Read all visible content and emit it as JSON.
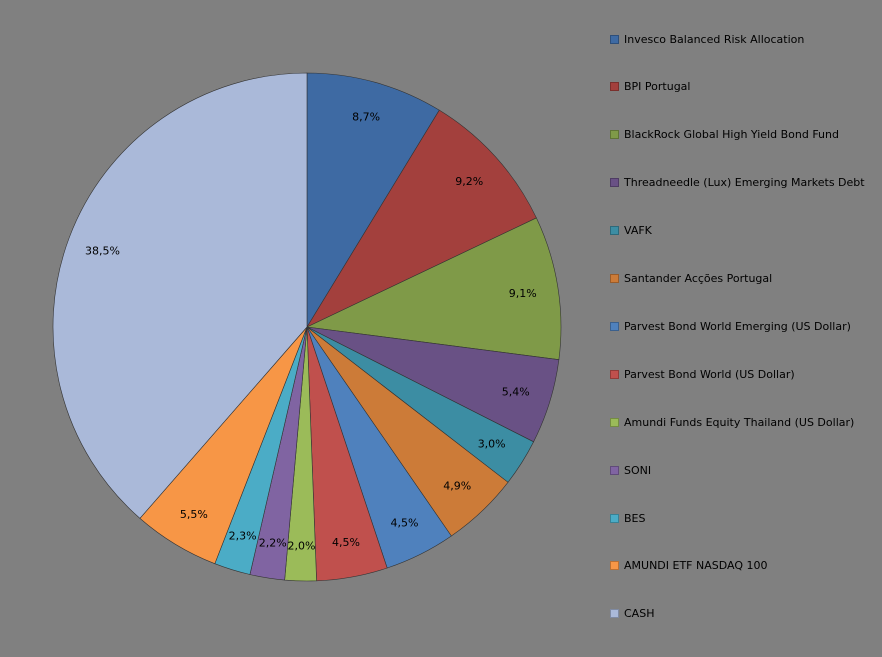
{
  "chart_data": {
    "type": "pie",
    "legend_position": "right",
    "slices": [
      {
        "name": "Invesco Balanced Risk Allocation",
        "value": 8.7,
        "label": "8,7%",
        "color": "#3E6AA3"
      },
      {
        "name": "BPI Portugal",
        "value": 9.2,
        "label": "9,2%",
        "color": "#A3403D"
      },
      {
        "name": "BlackRock Global High Yield Bond Fund",
        "value": 9.1,
        "label": "9,1%",
        "color": "#7F9A48"
      },
      {
        "name": "Threadneedle (Lux) Emerging Markets Debt",
        "value": 5.4,
        "label": "5,4%",
        "color": "#695185"
      },
      {
        "name": "VAFK",
        "value": 3.0,
        "label": "3,0%",
        "color": "#3C8DA3"
      },
      {
        "name": "Santander Acções Portugal",
        "value": 4.9,
        "label": "4,9%",
        "color": "#CC7B38"
      },
      {
        "name": "Parvest Bond World Emerging (US Dollar)",
        "value": 4.5,
        "label": "4,5%",
        "color": "#4F81BD"
      },
      {
        "name": "Parvest Bond World (US Dollar)",
        "value": 4.5,
        "label": "4,5%",
        "color": "#C0504D"
      },
      {
        "name": "Amundi Funds Equity Thailand (US Dollar)",
        "value": 2.0,
        "label": "2,0%",
        "color": "#9BBB59"
      },
      {
        "name": "SONI",
        "value": 2.2,
        "label": "2,2%",
        "color": "#8064A2"
      },
      {
        "name": "BES",
        "value": 2.3,
        "label": "2,3%",
        "color": "#4BACC6"
      },
      {
        "name": "AMUNDI ETF NASDAQ 100",
        "value": 5.5,
        "label": "5,5%",
        "color": "#F79646"
      },
      {
        "name": "CASH",
        "value": 38.5,
        "label": "38,5%",
        "color": "#AAB9D9"
      }
    ]
  }
}
